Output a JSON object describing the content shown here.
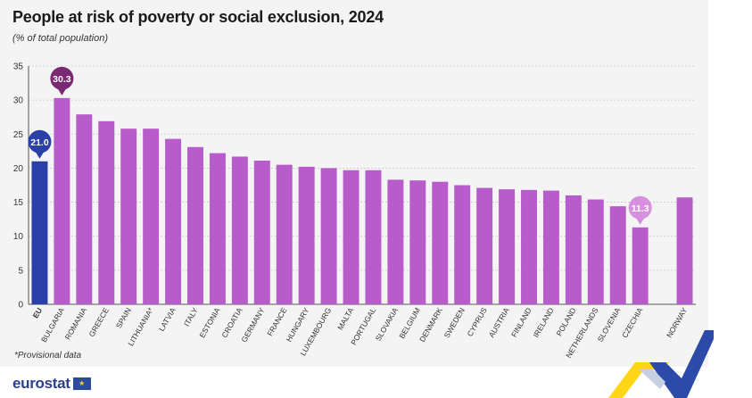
{
  "header": {
    "title": "People at risk of poverty or social exclusion, 2024",
    "subtitle": "(% of total population)"
  },
  "footnote": "*Provisional data",
  "logo": {
    "text": "eurostat",
    "flag_icon": "eu-flag-icon"
  },
  "colors": {
    "eu_bar": "#2a3fa8",
    "country_bar": "#b85ccb",
    "highest_marker": "#7a2a72",
    "lowest_marker": "#d690de",
    "grid": "#c9c9c9",
    "axis_text": "#333333"
  },
  "chart_data": {
    "type": "bar",
    "title": "People at risk of poverty or social exclusion, 2024",
    "subtitle": "(% of total population)",
    "ylim": [
      0,
      35
    ],
    "yticks": [
      0,
      5,
      10,
      15,
      20,
      25,
      30,
      35
    ],
    "grid": true,
    "categories": [
      "EU",
      "BULGARIA",
      "ROMANIA",
      "GREECE",
      "SPAIN",
      "LITHUANIA*",
      "LATVIA",
      "ITALY",
      "ESTONIA",
      "CROATIA",
      "GERMANY",
      "FRANCE",
      "HUNGARY",
      "LUXEMBOURG",
      "MALTA",
      "PORTUGAL",
      "SLOVAKIA",
      "BELGIUM",
      "DENMARK",
      "SWEDEN",
      "CYPRUS",
      "AUSTRIA",
      "FINLAND",
      "IRELAND",
      "POLAND",
      "NETHERLANDS",
      "SLOVENIA",
      "CZECHIA",
      "NORWAY"
    ],
    "values": [
      21.0,
      30.3,
      27.9,
      26.9,
      25.8,
      25.8,
      24.3,
      23.1,
      22.2,
      21.7,
      21.1,
      20.5,
      20.2,
      20.0,
      19.7,
      19.7,
      18.3,
      18.2,
      18.0,
      17.5,
      17.1,
      16.9,
      16.8,
      16.7,
      16.0,
      15.4,
      14.4,
      11.3,
      15.7
    ],
    "highlights": [
      {
        "category": "EU",
        "label": "21.0",
        "color": "#2a3fa8"
      },
      {
        "category": "BULGARIA",
        "label": "30.3",
        "color": "#7a2a72"
      },
      {
        "category": "CZECHIA",
        "label": "11.3",
        "color": "#d690de"
      }
    ]
  }
}
